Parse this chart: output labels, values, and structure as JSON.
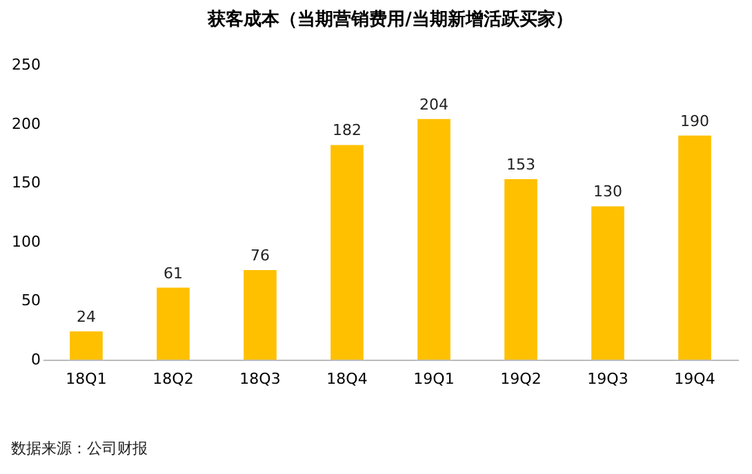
{
  "chart_data": {
    "type": "bar",
    "title": "获客成本（当期营销费用/当期新增活跃买家）",
    "categories": [
      "18Q1",
      "18Q2",
      "18Q3",
      "18Q4",
      "19Q1",
      "19Q2",
      "19Q3",
      "19Q4"
    ],
    "values": [
      24,
      61,
      76,
      182,
      204,
      153,
      130,
      190
    ],
    "color": "#ffc000",
    "ylim": [
      0,
      250
    ],
    "yticks": [
      0,
      50,
      100,
      150,
      200,
      250
    ],
    "grid": false,
    "data_labels": true,
    "annotations": [
      "数据来源：公司财报"
    ]
  }
}
